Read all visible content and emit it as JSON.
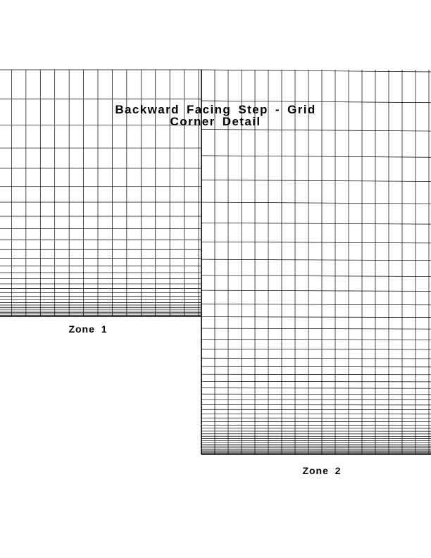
{
  "title": {
    "line1": "Backward Facing Step - Grid",
    "line2": "Corner Detail"
  },
  "zones": [
    {
      "label": "Zone 1",
      "columns": 14,
      "rows": 28,
      "row_clustering": "toward lower wall"
    },
    {
      "label": "Zone 2",
      "columns": 18,
      "rows": 44,
      "row_clustering": "toward lower wall"
    }
  ],
  "colors": {
    "background": "#ffffff",
    "lines": "#000000"
  }
}
